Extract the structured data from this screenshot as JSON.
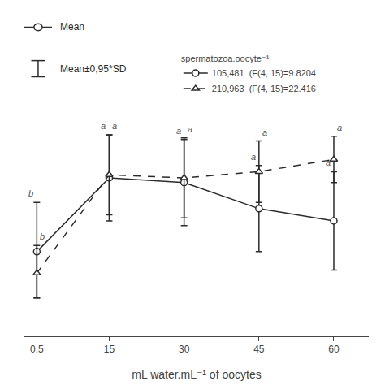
{
  "chart_data": {
    "type": "line",
    "x": [
      0.5,
      15,
      30,
      45,
      60
    ],
    "series": [
      {
        "name": "105,481  (F(4, 15)=9.8204",
        "color": "#2b2b2b",
        "marker": "circle",
        "line_style": "solid",
        "values": [
          30,
          78,
          75,
          58,
          50
        ],
        "err_upper": [
          32,
          28,
          28,
          28,
          32
        ],
        "err_lower": [
          30,
          28,
          28,
          28,
          32
        ],
        "letter_labels": [
          "b",
          "a",
          "a",
          "a",
          "a"
        ]
      },
      {
        "name": "210,963  (F(4, 15)=22.416",
        "color": "#2b2b2b",
        "marker": "triangle-up",
        "line_style": "dash",
        "values": [
          16,
          80,
          78,
          82,
          90
        ],
        "err_upper": [
          18,
          26,
          26,
          20,
          15
        ],
        "err_lower": [
          16,
          26,
          26,
          20,
          15
        ],
        "letter_labels": [
          "b",
          "a",
          "a",
          "a",
          "a"
        ]
      }
    ],
    "xlabel": "mL water.mL⁻¹ of oocytes",
    "legend_title": "spermatozoa.oocyte⁻¹",
    "annotations": [
      "Mean",
      "Mean±0,95*SD"
    ],
    "xlim": [
      -2,
      67
    ],
    "ylim": [
      -25,
      125
    ],
    "xticks": [
      0.5,
      15,
      30,
      45,
      60
    ],
    "yticks": [],
    "tick_labels": "x",
    "grid": false,
    "legend": "top"
  }
}
